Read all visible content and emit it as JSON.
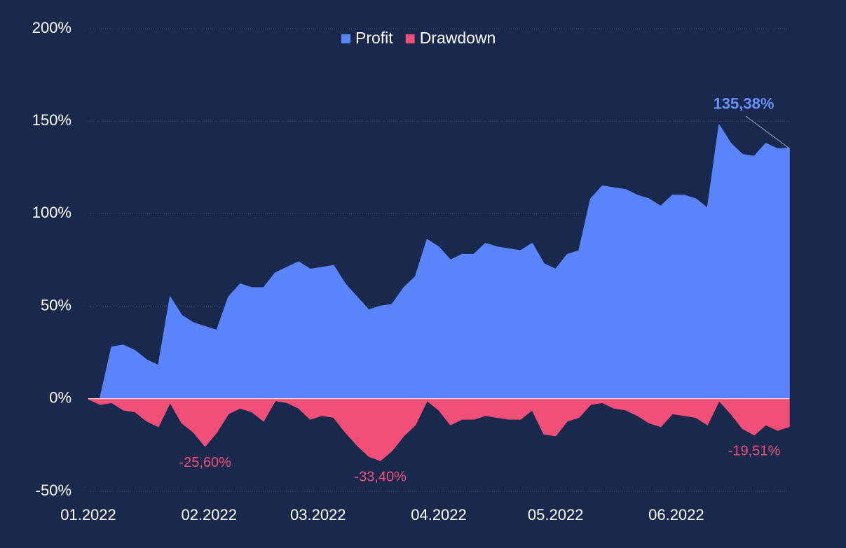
{
  "chart_data": {
    "type": "area",
    "x": [
      0,
      3,
      6,
      9,
      12,
      15,
      18,
      21,
      24,
      27,
      30,
      33,
      36,
      39,
      42,
      45,
      48,
      51,
      54,
      57,
      60,
      63,
      66,
      69,
      72,
      75,
      78,
      81,
      84,
      87,
      90,
      93,
      96,
      99,
      102,
      105,
      108,
      111,
      114,
      117,
      120,
      123,
      126,
      129,
      132,
      135,
      138,
      141,
      144,
      147,
      150,
      153,
      156,
      159,
      162,
      165,
      168,
      171,
      174,
      177,
      180
    ],
    "xlim": [
      0,
      180
    ],
    "xticks": [
      {
        "value": 0,
        "label": "01.2022"
      },
      {
        "value": 31,
        "label": "02.2022"
      },
      {
        "value": 59,
        "label": "03.2022"
      },
      {
        "value": 90,
        "label": "04.2022"
      },
      {
        "value": 120,
        "label": "05.2022"
      },
      {
        "value": 151,
        "label": "06.2022"
      }
    ],
    "ylim": [
      -50,
      200
    ],
    "yticks": [
      {
        "value": -50,
        "label": "-50%"
      },
      {
        "value": 0,
        "label": "0%"
      },
      {
        "value": 50,
        "label": "50%"
      },
      {
        "value": 100,
        "label": "100%"
      },
      {
        "value": 150,
        "label": "150%"
      },
      {
        "value": 200,
        "label": "200%"
      }
    ],
    "grid": true,
    "legend": "top",
    "series": [
      {
        "name": "Profit",
        "color": "#5a84fb",
        "values": [
          0,
          0,
          28,
          29,
          26,
          21,
          18,
          55,
          45,
          41,
          39,
          37,
          55,
          62,
          60,
          60,
          68,
          71,
          74,
          70,
          71,
          72,
          62,
          55,
          48,
          50,
          51,
          60,
          66,
          86,
          82,
          75,
          78,
          78,
          84,
          82,
          81,
          80,
          84,
          73,
          70,
          78,
          80,
          108,
          115,
          114,
          113,
          110,
          108,
          104,
          110,
          110,
          108,
          103,
          148,
          138,
          132,
          131,
          138,
          135,
          135.38
        ],
        "value_labels": [
          null,
          null,
          null,
          null,
          null,
          null,
          null,
          null,
          null,
          null,
          null,
          null,
          null,
          null,
          null,
          null,
          null,
          null,
          null,
          null,
          null,
          null,
          null,
          null,
          null,
          null,
          null,
          null,
          null,
          null,
          null,
          null,
          null,
          null,
          null,
          null,
          null,
          null,
          null,
          null,
          null,
          null,
          null,
          null,
          null,
          null,
          null,
          null,
          null,
          null,
          null,
          null,
          null,
          null,
          null,
          null,
          null,
          null,
          null,
          null,
          "135,38%"
        ]
      },
      {
        "name": "Drawdown",
        "color": "#f04f78",
        "values": [
          0,
          -3,
          -2,
          -6,
          -7,
          -12,
          -15,
          -2,
          -13,
          -18,
          -25.6,
          -18,
          -8,
          -5,
          -7,
          -12,
          -1,
          -2,
          -5,
          -11,
          -9,
          -10,
          -18,
          -25,
          -31,
          -33.4,
          -28,
          -20,
          -14,
          -1,
          -6,
          -14,
          -11,
          -11,
          -9,
          -10,
          -11,
          -11,
          -6,
          -19,
          -20,
          -12,
          -10,
          -3,
          -2,
          -5,
          -6,
          -9,
          -13,
          -15,
          -8,
          -9,
          -10,
          -14,
          -1,
          -8,
          -16,
          -19.51,
          -14,
          -17,
          -15
        ],
        "value_labels": [
          null,
          null,
          null,
          null,
          null,
          null,
          null,
          null,
          null,
          null,
          "-25,60%",
          null,
          null,
          null,
          null,
          null,
          null,
          null,
          null,
          null,
          null,
          null,
          null,
          null,
          null,
          "-33,40%",
          null,
          null,
          null,
          null,
          null,
          null,
          null,
          null,
          null,
          null,
          null,
          null,
          null,
          null,
          null,
          null,
          null,
          null,
          null,
          null,
          null,
          null,
          null,
          null,
          null,
          null,
          null,
          null,
          null,
          null,
          null,
          "-19,51%",
          null,
          null,
          null
        ]
      }
    ]
  }
}
